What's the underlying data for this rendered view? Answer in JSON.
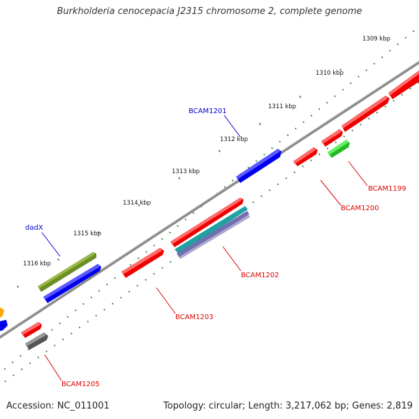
{
  "title": "Burkholderia cenocepacia J2315 chromosome 2, complete genome",
  "accession": "Accession: NC_011001",
  "summary": "Topology: circular; Length: 3,217,062 bp; Genes: 2,819",
  "colors": {
    "backbone": "#8a8a8a",
    "tick": "#2a7a2a",
    "label_forward": "#0000cc",
    "label_reverse": "#dd0000"
  },
  "kbp_ticks": [
    "1309 kbp",
    "1310 kbp",
    "1311 kbp",
    "1312 kbp",
    "1313 kbp",
    "1314 kbp",
    "1315 kbp",
    "1316 kbp"
  ],
  "gene_labels": {
    "bcam1201": "BCAM1201",
    "dadx": "dadX",
    "bcam1199": "BCAM1199",
    "bcam1200": "BCAM1200",
    "bcam1202": "BCAM1202",
    "bcam1203": "BCAM1203",
    "bcam1205": "BCAM1205"
  }
}
